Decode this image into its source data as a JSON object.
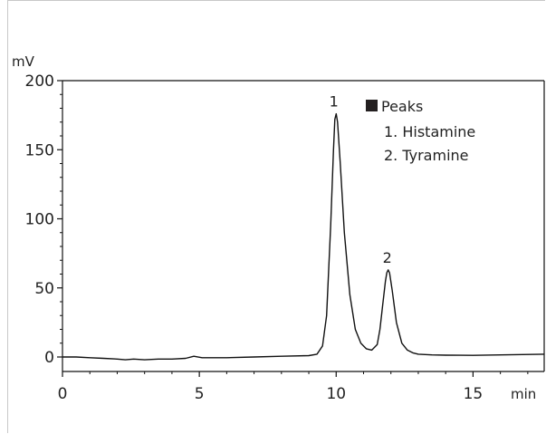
{
  "chart_data": {
    "type": "line",
    "title": "",
    "xlabel": "min",
    "ylabel": "mV",
    "xlim": [
      0,
      17.6
    ],
    "ylim": [
      -10,
      200
    ],
    "x_ticks": [
      0,
      5,
      10,
      15
    ],
    "y_ticks": [
      0,
      50,
      100,
      150,
      200
    ],
    "x_tick_labels": [
      "0",
      "5",
      "10",
      "15"
    ],
    "y_tick_labels": [
      "0",
      "50",
      "100",
      "150",
      "200"
    ],
    "grid": false,
    "legend_position": "top-right",
    "legend": {
      "title": "Peaks",
      "items": [
        "1. Histamine",
        "2. Tyramine"
      ]
    },
    "line_color": "#111111",
    "series": [
      {
        "x": [
          0,
          0.5,
          1,
          1.5,
          2,
          2.3,
          2.6,
          3,
          3.5,
          4,
          4.5,
          4.8,
          5.1,
          5.5,
          6,
          7,
          8,
          9,
          9.3,
          9.5,
          9.65,
          9.8,
          9.9,
          9.95,
          10.0,
          10.05,
          10.15,
          10.3,
          10.5,
          10.7,
          10.9,
          11.1,
          11.3,
          11.5,
          11.6,
          11.7,
          11.8,
          11.85,
          11.9,
          11.95,
          12.05,
          12.2,
          12.4,
          12.6,
          12.8,
          13.0,
          13.5,
          14,
          15,
          16,
          17.6
        ],
        "y": [
          0,
          0,
          -0.5,
          -1,
          -1.5,
          -2,
          -1.5,
          -2,
          -1.5,
          -1.5,
          -1,
          0.5,
          -0.5,
          -0.5,
          -0.5,
          0,
          0.5,
          1,
          2,
          8,
          30,
          95,
          150,
          172,
          176,
          170,
          140,
          90,
          45,
          20,
          10,
          6,
          5,
          9,
          20,
          38,
          55,
          61,
          63,
          61,
          48,
          25,
          10,
          5,
          3,
          2,
          1.5,
          1.3,
          1.2,
          1.5,
          2
        ]
      }
    ],
    "annotations": [
      {
        "label": "1",
        "x": 9.95,
        "y": 176
      },
      {
        "label": "2",
        "x": 11.9,
        "y": 63
      }
    ]
  }
}
